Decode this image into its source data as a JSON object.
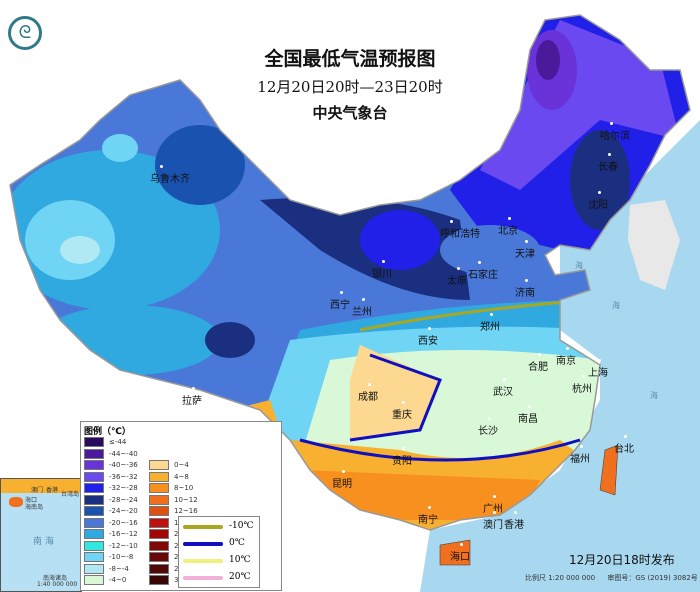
{
  "header": {
    "title": "全国最低气温预报图",
    "period": "12月20日20时—23日20时",
    "issuer": "中央气象台"
  },
  "cities": [
    {
      "name": "乌鲁木齐"
    },
    {
      "name": "哈尔滨"
    },
    {
      "name": "长春"
    },
    {
      "name": "沈阳"
    },
    {
      "name": "呼和浩特"
    },
    {
      "name": "北京"
    },
    {
      "name": "天津"
    },
    {
      "name": "银川"
    },
    {
      "name": "太原"
    },
    {
      "name": "石家庄"
    },
    {
      "name": "济南"
    },
    {
      "name": "西宁"
    },
    {
      "name": "兰州"
    },
    {
      "name": "郑州"
    },
    {
      "name": "西安"
    },
    {
      "name": "合肥"
    },
    {
      "name": "南京"
    },
    {
      "name": "上海"
    },
    {
      "name": "杭州"
    },
    {
      "name": "武汉"
    },
    {
      "name": "成都"
    },
    {
      "name": "重庆"
    },
    {
      "name": "拉萨"
    },
    {
      "name": "南昌"
    },
    {
      "name": "长沙"
    },
    {
      "name": "贵阳"
    },
    {
      "name": "福州"
    },
    {
      "name": "台北"
    },
    {
      "name": "昆明"
    },
    {
      "name": "南宁"
    },
    {
      "name": "广州"
    },
    {
      "name": "澳门"
    },
    {
      "name": "香港"
    },
    {
      "name": "海口"
    }
  ],
  "seas": [
    "海",
    "海",
    "海"
  ],
  "legend": {
    "title": "图例（℃）",
    "cold": [
      {
        "label": "≤-44",
        "color": "#2a0a5a"
      },
      {
        "label": "-44~-40",
        "color": "#4a1a9a"
      },
      {
        "label": "-40~-36",
        "color": "#6a33d9"
      },
      {
        "label": "-36~-32",
        "color": "#6a4af0"
      },
      {
        "label": "-32~-28",
        "color": "#2020e8"
      },
      {
        "label": "-28~-24",
        "color": "#1a2f80"
      },
      {
        "label": "-24~-20",
        "color": "#1a52b0"
      },
      {
        "label": "-20~-16",
        "color": "#4a78d8"
      },
      {
        "label": "-16~-12",
        "color": "#30a8e0"
      },
      {
        "label": "-12~-10",
        "color": "#30e8e0"
      },
      {
        "label": "-10~-8",
        "color": "#70d4f4"
      },
      {
        "label": "-8~-4",
        "color": "#b0e8f4"
      },
      {
        "label": "-4~0",
        "color": "#d8f8d8"
      }
    ],
    "warm": [
      {
        "label": "0~4",
        "color": "#fcd890"
      },
      {
        "label": "4~8",
        "color": "#f8b030"
      },
      {
        "label": "8~10",
        "color": "#f89020"
      },
      {
        "label": "10~12",
        "color": "#f07020"
      },
      {
        "label": "12~16",
        "color": "#e05010"
      },
      {
        "label": "16~20",
        "color": "#c01010"
      },
      {
        "label": "20~24",
        "color": "#a00808"
      },
      {
        "label": "24~26",
        "color": "#800808"
      },
      {
        "label": "26~28",
        "color": "#680808"
      },
      {
        "label": "28~30",
        "color": "#500808"
      },
      {
        "label": "30~32",
        "color": "#380505"
      }
    ],
    "isolines": [
      {
        "label": "-10℃",
        "color": "#a8a820"
      },
      {
        "label": "0℃",
        "color": "#1010c0"
      },
      {
        "label": "10℃",
        "color": "#f0f080"
      },
      {
        "label": "20℃",
        "color": "#f0b0d8"
      }
    ]
  },
  "inset": {
    "haikou": "海口",
    "hainan": "海南岛",
    "macau": "澳门",
    "hk": "香港",
    "taiwan": "台湾岛",
    "sea": "南 海",
    "islands": "南海诸岛",
    "scale": "1:40 000 000"
  },
  "footer": {
    "published": "12月20日18时发布",
    "scale": "比例尺 1:20 000 000",
    "review": "审图号：GS (2019) 3082号"
  },
  "colors": {
    "sea": "#a8d8f0",
    "land_bg": "#ffffff"
  }
}
